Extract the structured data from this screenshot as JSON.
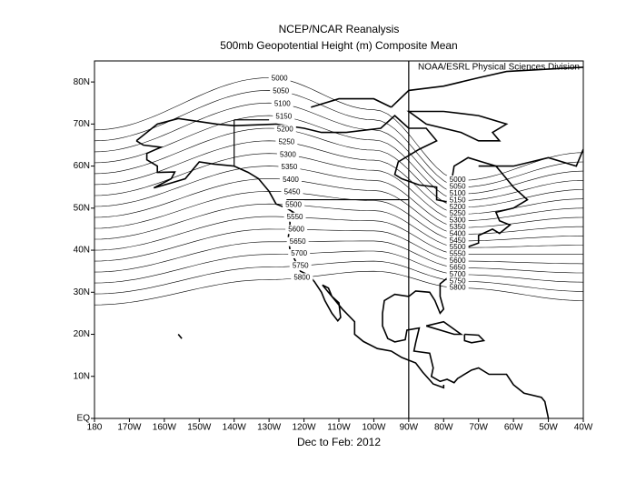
{
  "title": "NCEP/NCAR Reanalysis",
  "subtitle": "500mb Geopotential Height (m) Composite Mean",
  "attribution": "NOAA/ESRL Physical Sciences Division",
  "caption": "Dec to Feb: 2012",
  "map": {
    "lonlim": [
      -180,
      -40
    ],
    "latlim": [
      0,
      85
    ],
    "xticks": [
      {
        "value": -180,
        "label": "180"
      },
      {
        "value": -170,
        "label": "170W"
      },
      {
        "value": -160,
        "label": "160W"
      },
      {
        "value": -150,
        "label": "150W"
      },
      {
        "value": -140,
        "label": "140W"
      },
      {
        "value": -130,
        "label": "130W"
      },
      {
        "value": -120,
        "label": "120W"
      },
      {
        "value": -110,
        "label": "110W"
      },
      {
        "value": -100,
        "label": "100W"
      },
      {
        "value": -90,
        "label": "90W"
      },
      {
        "value": -80,
        "label": "80W"
      },
      {
        "value": -70,
        "label": "70W"
      },
      {
        "value": -60,
        "label": "60W"
      },
      {
        "value": -50,
        "label": "50W"
      },
      {
        "value": -40,
        "label": "40W"
      }
    ],
    "yticks": [
      {
        "value": 0,
        "label": "EQ"
      },
      {
        "value": 10,
        "label": "10N"
      },
      {
        "value": 20,
        "label": "20N"
      },
      {
        "value": 30,
        "label": "30N"
      },
      {
        "value": 40,
        "label": "40N"
      },
      {
        "value": 50,
        "label": "50N"
      },
      {
        "value": 60,
        "label": "60N"
      },
      {
        "value": 70,
        "label": "70N"
      },
      {
        "value": 80,
        "label": "80N"
      }
    ],
    "contours": [
      5000,
      5050,
      5100,
      5150,
      5200,
      5250,
      5300,
      5350,
      5400,
      5450,
      5500,
      5550,
      5600,
      5650,
      5700,
      5750,
      5800
    ]
  }
}
